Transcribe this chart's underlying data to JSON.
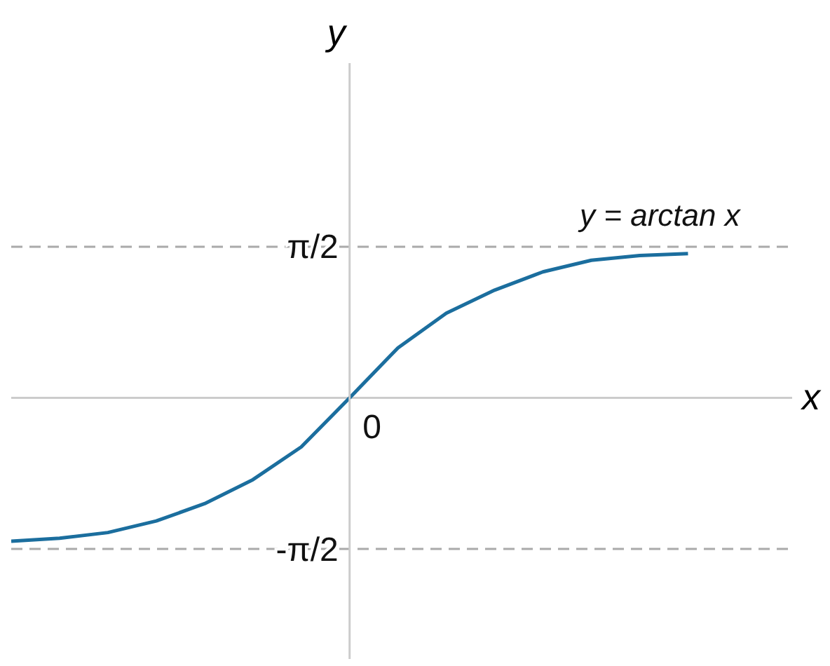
{
  "chart_data": {
    "type": "line",
    "xlabel": "x",
    "ylabel": "y",
    "categories": [
      null,
      null,
      null,
      null,
      null,
      null,
      null,
      "0",
      null,
      null,
      null,
      null,
      null,
      null,
      null
    ],
    "series": [
      {
        "name": "y = arctan x",
        "color": "#1b6e9e",
        "values": [
          -1.49,
          -1.46,
          -1.4,
          -1.28,
          -1.1,
          -0.85,
          -0.51,
          0,
          0.52,
          0.88,
          1.12,
          1.31,
          1.43,
          1.48,
          1.5
        ]
      }
    ],
    "ylim": [
      -2.7,
      3.48
    ],
    "yticks": [
      {
        "value": 1.5708,
        "label": "π/2"
      },
      {
        "value": -1.5708,
        "label": "-π/2"
      }
    ],
    "ref_lines": [
      {
        "axis": "y",
        "value": 1.5708,
        "color": "#aaaaaa",
        "line_style": "dashed"
      },
      {
        "axis": "y",
        "value": -1.5708,
        "color": "#aaaaaa",
        "line_style": "dashed"
      },
      {
        "axis": "y",
        "value": 0,
        "color": "#cccccc",
        "line_style": "solid"
      }
    ],
    "marker": "none"
  }
}
